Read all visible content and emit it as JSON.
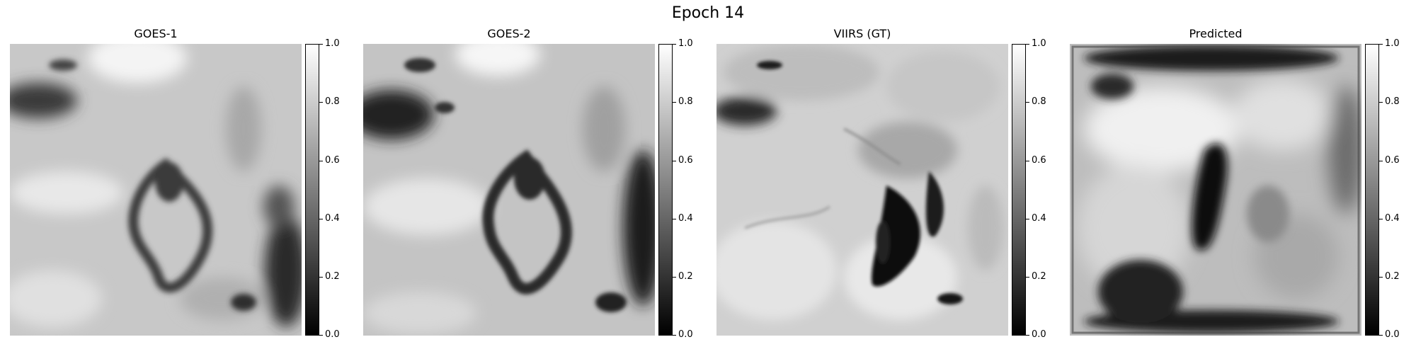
{
  "figure": {
    "title": "Epoch 14"
  },
  "panels": [
    {
      "title": "GOES-1",
      "content": "goes-1-grayscale-image"
    },
    {
      "title": "GOES-2",
      "content": "goes-2-grayscale-image"
    },
    {
      "title": "VIIRS (GT)",
      "content": "viirs-ground-truth-grayscale-image"
    },
    {
      "title": "Predicted",
      "content": "predicted-grayscale-image"
    }
  ],
  "colorbar": {
    "colormap": "gray",
    "min_color": "#000000",
    "max_color": "#ffffff",
    "range": [
      0.0,
      1.0
    ],
    "ticks": [
      "0.0",
      "0.2",
      "0.4",
      "0.6",
      "0.8",
      "1.0"
    ]
  }
}
